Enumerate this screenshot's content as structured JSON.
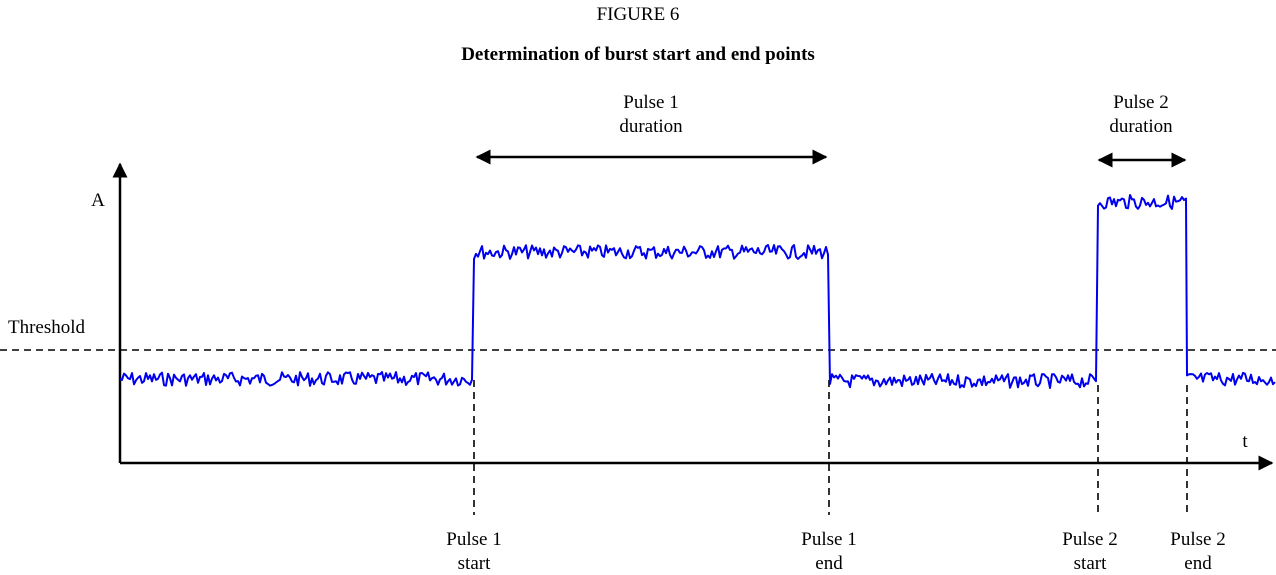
{
  "figure_label": "FIGURE 6",
  "title": "Determination of burst start and end points",
  "y_axis_label": "A",
  "x_axis_label": "t",
  "threshold_label": "Threshold",
  "durations": [
    {
      "lines": [
        "Pulse 1",
        "duration"
      ]
    },
    {
      "lines": [
        "Pulse 2",
        "duration"
      ]
    }
  ],
  "markers": [
    {
      "lines": [
        "Pulse 1",
        "start"
      ]
    },
    {
      "lines": [
        "Pulse 1",
        "end"
      ]
    },
    {
      "lines": [
        "Pulse 2",
        "start"
      ]
    },
    {
      "lines": [
        "Pulse 2",
        "end"
      ]
    }
  ]
}
